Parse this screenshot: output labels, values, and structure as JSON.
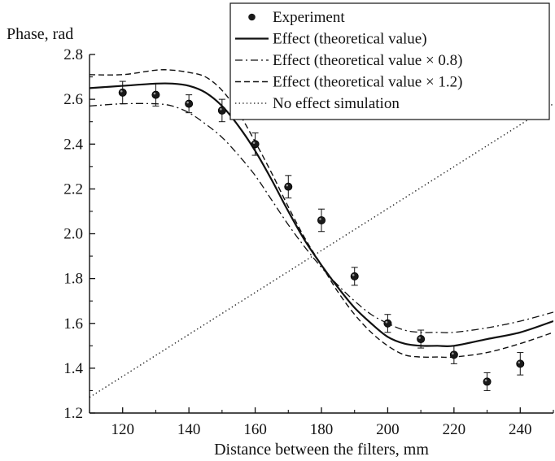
{
  "chart_data": {
    "type": "scatter",
    "xlabel": "Distance between the filters, mm",
    "ylabel": "Phase, rad",
    "xlim": [
      110,
      250
    ],
    "ylim": [
      1.2,
      2.8
    ],
    "x_ticks": [
      120,
      140,
      160,
      180,
      200,
      220,
      240
    ],
    "x_tick_labels": [
      "120",
      "140",
      "160",
      "180",
      "200",
      "220",
      "240"
    ],
    "y_ticks": [
      1.2,
      1.4,
      1.6,
      1.8,
      2.0,
      2.2,
      2.4,
      2.6,
      2.8
    ],
    "y_tick_labels": [
      "1.2",
      "1.4",
      "1.6",
      "1.8",
      "2.0",
      "2.2",
      "2.4",
      "2.6",
      "2.8"
    ],
    "grid": false,
    "legend_position": "top-right",
    "series": [
      {
        "name": "Experiment",
        "kind": "points_with_error_bars",
        "style": "filled-circle",
        "points": [
          {
            "x": 120,
            "y": 2.63,
            "err": 0.05
          },
          {
            "x": 130,
            "y": 2.62,
            "err": 0.05
          },
          {
            "x": 140,
            "y": 2.58,
            "err": 0.04
          },
          {
            "x": 150,
            "y": 2.55,
            "err": 0.05
          },
          {
            "x": 160,
            "y": 2.4,
            "err": 0.05
          },
          {
            "x": 170,
            "y": 2.21,
            "err": 0.05
          },
          {
            "x": 180,
            "y": 2.06,
            "err": 0.05
          },
          {
            "x": 190,
            "y": 1.81,
            "err": 0.04
          },
          {
            "x": 200,
            "y": 1.6,
            "err": 0.04
          },
          {
            "x": 210,
            "y": 1.53,
            "err": 0.04
          },
          {
            "x": 220,
            "y": 1.46,
            "err": 0.04
          },
          {
            "x": 230,
            "y": 1.34,
            "err": 0.04
          },
          {
            "x": 240,
            "y": 1.42,
            "err": 0.05
          }
        ]
      },
      {
        "name": "Effect (theoretical value)",
        "kind": "line",
        "style": "solid",
        "x": [
          110,
          120,
          130,
          135,
          140,
          145,
          150,
          155,
          160,
          165,
          170,
          175,
          180,
          185,
          190,
          195,
          200,
          205,
          210,
          215,
          220,
          230,
          240,
          250
        ],
        "y": [
          2.65,
          2.66,
          2.67,
          2.67,
          2.66,
          2.63,
          2.57,
          2.48,
          2.37,
          2.24,
          2.1,
          1.97,
          1.86,
          1.76,
          1.67,
          1.6,
          1.54,
          1.51,
          1.5,
          1.5,
          1.5,
          1.53,
          1.56,
          1.61
        ]
      },
      {
        "name": "Effect (theoretical value × 0.8)",
        "kind": "line",
        "style": "dash-dot",
        "x": [
          110,
          120,
          130,
          135,
          140,
          145,
          150,
          155,
          160,
          165,
          170,
          175,
          180,
          185,
          190,
          195,
          200,
          205,
          210,
          215,
          220,
          230,
          240,
          250
        ],
        "y": [
          2.57,
          2.58,
          2.58,
          2.57,
          2.54,
          2.49,
          2.43,
          2.35,
          2.26,
          2.15,
          2.04,
          1.94,
          1.85,
          1.77,
          1.7,
          1.64,
          1.6,
          1.57,
          1.56,
          1.56,
          1.56,
          1.58,
          1.61,
          1.65
        ]
      },
      {
        "name": "Effect (theoretical value × 1.2)",
        "kind": "line",
        "style": "dashed",
        "x": [
          110,
          120,
          130,
          135,
          140,
          145,
          150,
          155,
          160,
          165,
          170,
          175,
          180,
          185,
          190,
          195,
          200,
          205,
          210,
          215,
          220,
          230,
          240,
          250
        ],
        "y": [
          2.71,
          2.71,
          2.73,
          2.73,
          2.72,
          2.7,
          2.64,
          2.54,
          2.41,
          2.27,
          2.12,
          1.98,
          1.86,
          1.74,
          1.64,
          1.56,
          1.5,
          1.46,
          1.45,
          1.45,
          1.45,
          1.47,
          1.51,
          1.56
        ]
      },
      {
        "name": "No effect simulation",
        "kind": "line",
        "style": "dotted",
        "x": [
          110,
          250
        ],
        "y": [
          1.27,
          2.58
        ]
      }
    ]
  }
}
